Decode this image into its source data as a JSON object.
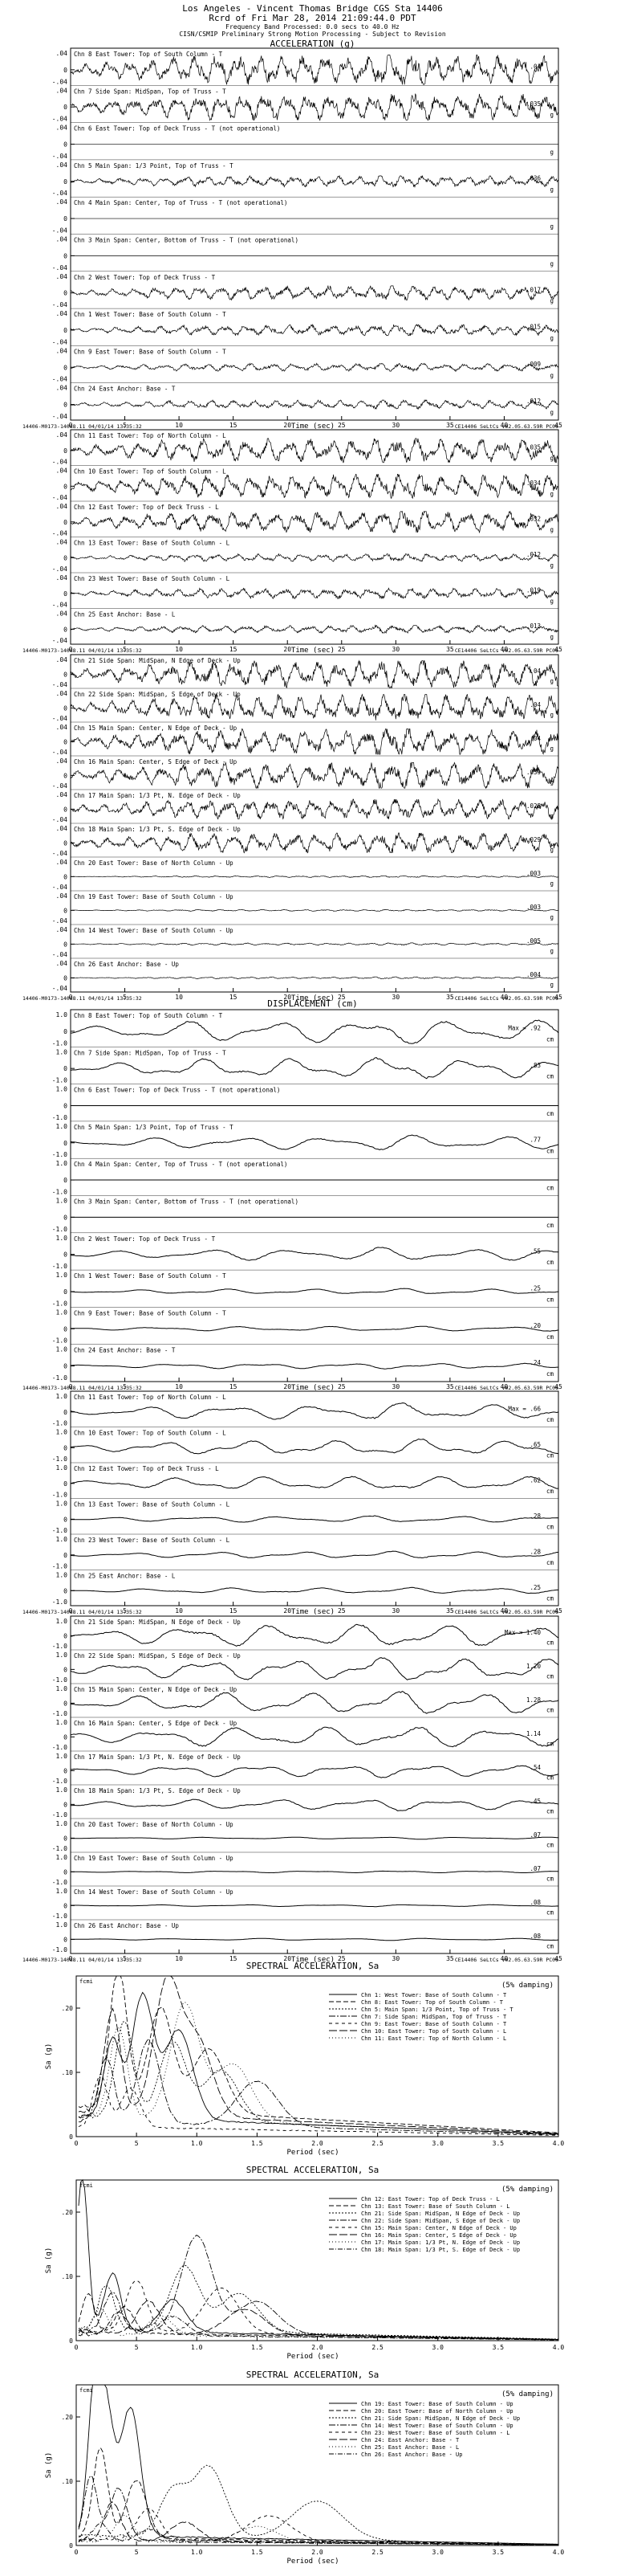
{
  "header": {
    "line1": "Los Angeles - Vincent Thomas Bridge    CGS Sta 14406",
    "line2": "Rcrd of Fri Mar 28, 2014 21:09:44.0 PDT",
    "line3": "Frequency Band Processed: 0.0 secs to 40.0 Hz",
    "line4": "CISN/CSMIP Preliminary Strong Motion Processing - Subject to Revision"
  },
  "sections": {
    "acceleration": "ACCELERATION (g)",
    "displacement": "DISPLACEMENT (cm)",
    "spectral": "SPECTRAL ACCELERATION, Sa",
    "damping": "(5% damping)"
  },
  "common": {
    "time_label": "Time (sec)",
    "period_label": "Period (sec)",
    "sa_label": "Sa (g)",
    "fcmi": "fcmi",
    "footer_left": "14406-M0173-14088.11 04/01/14 13:35:32",
    "footer_right": "CE14406  SeLtCs  v02.05.63.59R PC06",
    "time_ticks": [
      "0",
      "5",
      "10",
      "15",
      "20",
      "25",
      "30",
      "35",
      "40",
      "45"
    ],
    "period_ticks": [
      "0",
      "5",
      "1.0",
      "1.5",
      "2.0",
      "2.5",
      "3.0",
      "3.5",
      "4.0"
    ]
  },
  "chart_data": [
    {
      "type": "line",
      "quantity": "acceleration",
      "unit": "g",
      "ylim": [
        -0.04,
        0.04
      ],
      "y_ticks": [
        ".04",
        "0",
        "-.04"
      ],
      "xlim": [
        0,
        45
      ],
      "channels": [
        {
          "label": "Chn 8  East Tower: Top of South Column - T",
          "peak": ".04",
          "units": "g",
          "amp": 0.95
        },
        {
          "label": "Chn 7  Side Span: MidSpan, Top of Truss - T",
          "peak": ".035",
          "units": "g",
          "amp": 0.85
        },
        {
          "label": "Chn 6  East Tower: Top of Deck Truss - T (not operational)",
          "peak": "",
          "units": "g",
          "amp": 0.0
        },
        {
          "label": "Chn 5  Main Span: 1/3 Point, Top of Truss - T",
          "peak": ".036",
          "units": "g",
          "amp": 0.35
        },
        {
          "label": "Chn 4  Main Span: Center, Top of Truss - T (not operational)",
          "peak": "",
          "units": "g",
          "amp": 0.0
        },
        {
          "label": "Chn 3  Main Span: Center, Bottom of Truss - T (not operational)",
          "peak": "",
          "units": "g",
          "amp": 0.0
        },
        {
          "label": "Chn 2  West Tower: Top of Deck Truss - T",
          "peak": ".017",
          "units": "g",
          "amp": 0.45
        },
        {
          "label": "Chn 1  West Tower: Base of South Column - T",
          "peak": ".015",
          "units": "g",
          "amp": 0.35
        },
        {
          "label": "Chn 9  East Tower: Base of South Column - T",
          "peak": ".009",
          "units": "g",
          "amp": 0.25
        },
        {
          "label": "Chn 24  East Anchor: Base - T",
          "peak": ".012",
          "units": "g",
          "amp": 0.28
        }
      ]
    },
    {
      "type": "line",
      "quantity": "acceleration",
      "unit": "g",
      "ylim": [
        -0.04,
        0.04
      ],
      "y_ticks": [
        ".04",
        "0",
        "-.04"
      ],
      "xlim": [
        0,
        45
      ],
      "channels": [
        {
          "label": "Chn 11  East Tower: Top of North Column - L",
          "peak": ".035",
          "units": "g",
          "amp": 0.8
        },
        {
          "label": "Chn 10  East Tower: Top of South Column - L",
          "peak": ".034",
          "units": "g",
          "amp": 0.8
        },
        {
          "label": "Chn 12  East Tower: Top of Deck Truss - L",
          "peak": ".032",
          "units": "g",
          "amp": 0.7
        },
        {
          "label": "Chn 13  East Tower: Base of South Column - L",
          "peak": ".012",
          "units": "g",
          "amp": 0.25
        },
        {
          "label": "Chn 23  West Tower: Base of South Column - L",
          "peak": ".019",
          "units": "g",
          "amp": 0.35
        },
        {
          "label": "Chn 25  East Anchor: Base - L",
          "peak": ".013",
          "units": "g",
          "amp": 0.25
        }
      ]
    },
    {
      "type": "line",
      "quantity": "acceleration",
      "unit": "g",
      "ylim": [
        -0.04,
        0.04
      ],
      "y_ticks": [
        ".04",
        "0",
        "-.04"
      ],
      "xlim": [
        0,
        45
      ],
      "channels": [
        {
          "label": "Chn 21  Side Span: MidSpan, N Edge of Deck - Up",
          "peak": ".04",
          "units": "g",
          "amp": 0.95
        },
        {
          "label": "Chn 22  Side Span: MidSpan, S Edge of Deck - Up",
          "peak": ".04",
          "units": "g",
          "amp": 0.95
        },
        {
          "label": "Chn 15  Main Span: Center, N Edge of Deck - Up",
          "peak": ".04",
          "units": "g",
          "amp": 0.9
        },
        {
          "label": "Chn 16  Main Span: Center, S Edge of Deck - Up",
          "peak": ".039",
          "units": "g",
          "amp": 0.9
        },
        {
          "label": "Chn 17  Main Span: 1/3 Pt, N. Edge of Deck - Up",
          "peak": ".028",
          "units": "g",
          "amp": 0.7
        },
        {
          "label": "Chn 18  Main Span: 1/3 Pt, S. Edge of Deck - Up",
          "peak": ".029",
          "units": "g",
          "amp": 0.7
        },
        {
          "label": "Chn 20  East Tower: Base of North Column - Up",
          "peak": ".003",
          "units": "g",
          "amp": 0.06
        },
        {
          "label": "Chn 19  East Tower: Base of South Column - Up",
          "peak": ".003",
          "units": "g",
          "amp": 0.06
        },
        {
          "label": "Chn 14  West Tower: Base of South Column - Up",
          "peak": ".005",
          "units": "g",
          "amp": 0.08
        },
        {
          "label": "Chn 26  East Anchor: Base - Up",
          "peak": ".004",
          "units": "g",
          "amp": 0.07
        }
      ]
    },
    {
      "type": "line",
      "quantity": "displacement",
      "unit": "cm",
      "ylim": [
        -1.0,
        1.0
      ],
      "y_ticks": [
        "1.0",
        "0",
        "-1.0"
      ],
      "xlim": [
        0,
        45
      ],
      "channels": [
        {
          "label": "Chn 8  East Tower: Top of South Column - T",
          "peak": "Max = .92",
          "units": "cm",
          "amp": 0.85
        },
        {
          "label": "Chn 7  Side Span: MidSpan, Top of Truss - T",
          "peak": ".83",
          "units": "cm",
          "amp": 0.75
        },
        {
          "label": "Chn 6  East Tower: Top of Deck Truss - T (not operational)",
          "peak": "",
          "units": "cm",
          "amp": 0.0
        },
        {
          "label": "Chn 5  Main Span: 1/3 Point, Top of Truss - T",
          "peak": ".77",
          "units": "cm",
          "amp": 0.5
        },
        {
          "label": "Chn 4  Main Span: Center, Top of Truss - T (not operational)",
          "peak": "",
          "units": "cm",
          "amp": 0.0
        },
        {
          "label": "Chn 3  Main Span: Center, Bottom of Truss - T (not operational)",
          "peak": "",
          "units": "cm",
          "amp": 0.0
        },
        {
          "label": "Chn 2  West Tower: Top of Deck Truss - T",
          "peak": ".55",
          "units": "cm",
          "amp": 0.45
        },
        {
          "label": "Chn 1  West Tower: Base of South Column - T",
          "peak": ".25",
          "units": "cm",
          "amp": 0.2
        },
        {
          "label": "Chn 9  East Tower: Base of South Column - T",
          "peak": ".20",
          "units": "cm",
          "amp": 0.18
        },
        {
          "label": "Chn 24  East Anchor: Base - T",
          "peak": ".24",
          "units": "cm",
          "amp": 0.2
        }
      ]
    },
    {
      "type": "line",
      "quantity": "displacement",
      "unit": "cm",
      "ylim": [
        -1.0,
        1.0
      ],
      "y_ticks": [
        "1.0",
        "0",
        "-1.0"
      ],
      "xlim": [
        0,
        45
      ],
      "channels": [
        {
          "label": "Chn 11  East Tower: Top of North Column - L",
          "peak": "Max = .66",
          "units": "cm",
          "amp": 0.6
        },
        {
          "label": "Chn 10  East Tower: Top of South Column - L",
          "peak": ".65",
          "units": "cm",
          "amp": 0.58
        },
        {
          "label": "Chn 12  East Tower: Top of Deck Truss - L",
          "peak": ".62",
          "units": "cm",
          "amp": 0.55
        },
        {
          "label": "Chn 13  East Tower: Base of South Column - L",
          "peak": ".28",
          "units": "cm",
          "amp": 0.25
        },
        {
          "label": "Chn 23  West Tower: Base of South Column - L",
          "peak": ".28",
          "units": "cm",
          "amp": 0.25
        },
        {
          "label": "Chn 25  East Anchor: Base - L",
          "peak": ".25",
          "units": "cm",
          "amp": 0.22
        }
      ]
    },
    {
      "type": "line",
      "quantity": "displacement",
      "unit": "cm",
      "ylim": [
        -1.0,
        1.0
      ],
      "y_ticks": [
        "1.0",
        "0",
        "-1.0"
      ],
      "xlim": [
        0,
        45
      ],
      "channels": [
        {
          "label": "Chn 21  Side Span: MidSpan, N Edge of Deck - Up",
          "peak": "Max = 1.40",
          "units": "cm",
          "amp": 0.95
        },
        {
          "label": "Chn 22  Side Span: MidSpan, S Edge of Deck - Up",
          "peak": "1.20",
          "units": "cm",
          "amp": 0.9
        },
        {
          "label": "Chn 15  Main Span: Center, N Edge of Deck - Up",
          "peak": "1.28",
          "units": "cm",
          "amp": 0.9
        },
        {
          "label": "Chn 16  Main Span: Center, S Edge of Deck - Up",
          "peak": "1.14",
          "units": "cm",
          "amp": 0.85
        },
        {
          "label": "Chn 17  Main Span: 1/3 Pt, N. Edge of Deck - Up",
          "peak": ".54",
          "units": "cm",
          "amp": 0.5
        },
        {
          "label": "Chn 18  Main Span: 1/3 Pt, S. Edge of Deck - Up",
          "peak": ".45",
          "units": "cm",
          "amp": 0.45
        },
        {
          "label": "Chn 20  East Tower: Base of North Column - Up",
          "peak": ".07",
          "units": "cm",
          "amp": 0.08
        },
        {
          "label": "Chn 19  East Tower: Base of South Column - Up",
          "peak": ".07",
          "units": "cm",
          "amp": 0.08
        },
        {
          "label": "Chn 14  West Tower: Base of South Column - Up",
          "peak": ".08",
          "units": "cm",
          "amp": 0.08
        },
        {
          "label": "Chn 26  East Anchor: Base - Up",
          "peak": ".08",
          "units": "cm",
          "amp": 0.08
        }
      ]
    },
    {
      "type": "line",
      "quantity": "spectral_acceleration",
      "ylim": [
        0,
        0.25
      ],
      "xlim": [
        0,
        4.0
      ],
      "y_ticks": [
        ".20",
        ".10",
        "0"
      ],
      "legend": [
        "Chn 1:  West Tower: Base of South Column - T",
        "Chn 8:  East Tower: Top of South Column - T",
        "Chn 5:  Main Span: 1/3 Point, Top of Truss - T",
        "Chn 7:  Side Span: MidSpan, Top of Truss - T",
        "Chn 9:  East Tower: Base of South Column - T",
        "Chn 10: East Tower: Top of South Column - L",
        "Chn 11: East Tower: Top of North Column - L"
      ],
      "series": [
        {
          "peaks": [
            [
              0.3,
              0.12
            ],
            [
              0.55,
              0.19
            ],
            [
              0.85,
              0.14
            ]
          ],
          "base": 0.02
        },
        {
          "peaks": [
            [
              0.35,
              0.22
            ],
            [
              0.7,
              0.16
            ],
            [
              1.1,
              0.1
            ]
          ],
          "base": 0.03
        },
        {
          "peaks": [
            [
              0.4,
              0.15
            ],
            [
              0.8,
              0.12
            ],
            [
              1.2,
              0.08
            ]
          ],
          "base": 0.02
        },
        {
          "peaks": [
            [
              0.25,
              0.1
            ],
            [
              0.6,
              0.13
            ],
            [
              1.5,
              0.07
            ]
          ],
          "base": 0.015
        },
        {
          "peaks": [
            [
              0.2,
              0.08
            ],
            [
              0.45,
              0.06
            ]
          ],
          "base": 0.01
        },
        {
          "peaks": [
            [
              0.3,
              0.16
            ],
            [
              0.75,
              0.2
            ],
            [
              1.0,
              0.12
            ]
          ],
          "base": 0.025
        },
        {
          "peaks": [
            [
              0.35,
              0.14
            ],
            [
              0.9,
              0.18
            ],
            [
              1.3,
              0.09
            ]
          ],
          "base": 0.02
        }
      ]
    },
    {
      "type": "line",
      "quantity": "spectral_acceleration",
      "ylim": [
        0,
        0.25
      ],
      "xlim": [
        0,
        4.0
      ],
      "y_ticks": [
        ".20",
        ".10",
        "0"
      ],
      "legend": [
        "Chn 12: East Tower: Top of Deck Truss - L",
        "Chn 13: East Tower: Base of South Column - L",
        "Chn 21: Side Span: MidSpan, N Edge of Deck - Up",
        "Chn 22: Side Span: MidSpan, S Edge of Deck - Up",
        "Chn 15: Main Span: Center, N Edge of Deck - Up",
        "Chn 16: Main Span: Center, S Edge of Deck - Up",
        "Chn 17: Main Span: 1/3 Pt, N. Edge of Deck - Up",
        "Chn 18: Main Span: 1/3 Pt, S. Edge of Deck - Up"
      ],
      "series": [
        {
          "peaks": [
            [
              0.05,
              0.24
            ],
            [
              0.3,
              0.09
            ],
            [
              0.8,
              0.05
            ]
          ],
          "base": 0.01
        },
        {
          "peaks": [
            [
              0.1,
              0.06
            ],
            [
              0.4,
              0.04
            ]
          ],
          "base": 0.008
        },
        {
          "peaks": [
            [
              0.25,
              0.07
            ],
            [
              0.9,
              0.1
            ],
            [
              1.35,
              0.06
            ]
          ],
          "base": 0.012
        },
        {
          "peaks": [
            [
              0.3,
              0.06
            ],
            [
              1.0,
              0.15
            ],
            [
              1.5,
              0.05
            ]
          ],
          "base": 0.01
        },
        {
          "peaks": [
            [
              0.5,
              0.08
            ],
            [
              1.2,
              0.07
            ]
          ],
          "base": 0.01
        },
        {
          "peaks": [
            [
              0.6,
              0.05
            ],
            [
              1.4,
              0.04
            ]
          ],
          "base": 0.008
        },
        {
          "peaks": [
            [
              0.2,
              0.04
            ],
            [
              0.7,
              0.03
            ]
          ],
          "base": 0.006
        },
        {
          "peaks": [
            [
              0.35,
              0.035
            ],
            [
              0.8,
              0.03
            ]
          ],
          "base": 0.006
        }
      ]
    },
    {
      "type": "line",
      "quantity": "spectral_acceleration",
      "ylim": [
        0,
        0.25
      ],
      "xlim": [
        0,
        4.0
      ],
      "y_ticks": [
        ".20",
        ".10",
        "0"
      ],
      "legend": [
        "Chn 19: East Tower: Base of South Column - Up",
        "Chn 20: East Tower: Base of North Column - Up",
        "Chn 21: Side Span: MidSpan, N Edge of Deck - Up",
        "Chn 14: West Tower: Base of South Column - Up",
        "Chn 23: West Tower: Base of South Column - L",
        "Chn 24: East Anchor: Base - T",
        "Chn 25: East Anchor: Base - L",
        "Chn 26: East Anchor: Base - Up"
      ],
      "series": [
        {
          "peaks": [
            [
              0.15,
              0.21
            ],
            [
              0.25,
              0.18
            ],
            [
              0.45,
              0.2
            ]
          ],
          "base": 0.01
        },
        {
          "peaks": [
            [
              0.2,
              0.14
            ],
            [
              0.5,
              0.09
            ]
          ],
          "base": 0.008
        },
        {
          "peaks": [
            [
              0.8,
              0.07
            ],
            [
              1.1,
              0.11
            ],
            [
              2.0,
              0.06
            ]
          ],
          "base": 0.01
        },
        {
          "peaks": [
            [
              0.12,
              0.1
            ],
            [
              0.35,
              0.08
            ]
          ],
          "base": 0.006
        },
        {
          "peaks": [
            [
              0.6,
              0.05
            ],
            [
              1.6,
              0.04
            ]
          ],
          "base": 0.006
        },
        {
          "peaks": [
            [
              0.3,
              0.06
            ],
            [
              0.9,
              0.03
            ]
          ],
          "base": 0.005
        },
        {
          "peaks": [
            [
              0.4,
              0.04
            ],
            [
              1.5,
              0.025
            ]
          ],
          "base": 0.004
        },
        {
          "peaks": [
            [
              0.2,
              0.03
            ],
            [
              0.6,
              0.02
            ]
          ],
          "base": 0.004
        }
      ]
    }
  ]
}
